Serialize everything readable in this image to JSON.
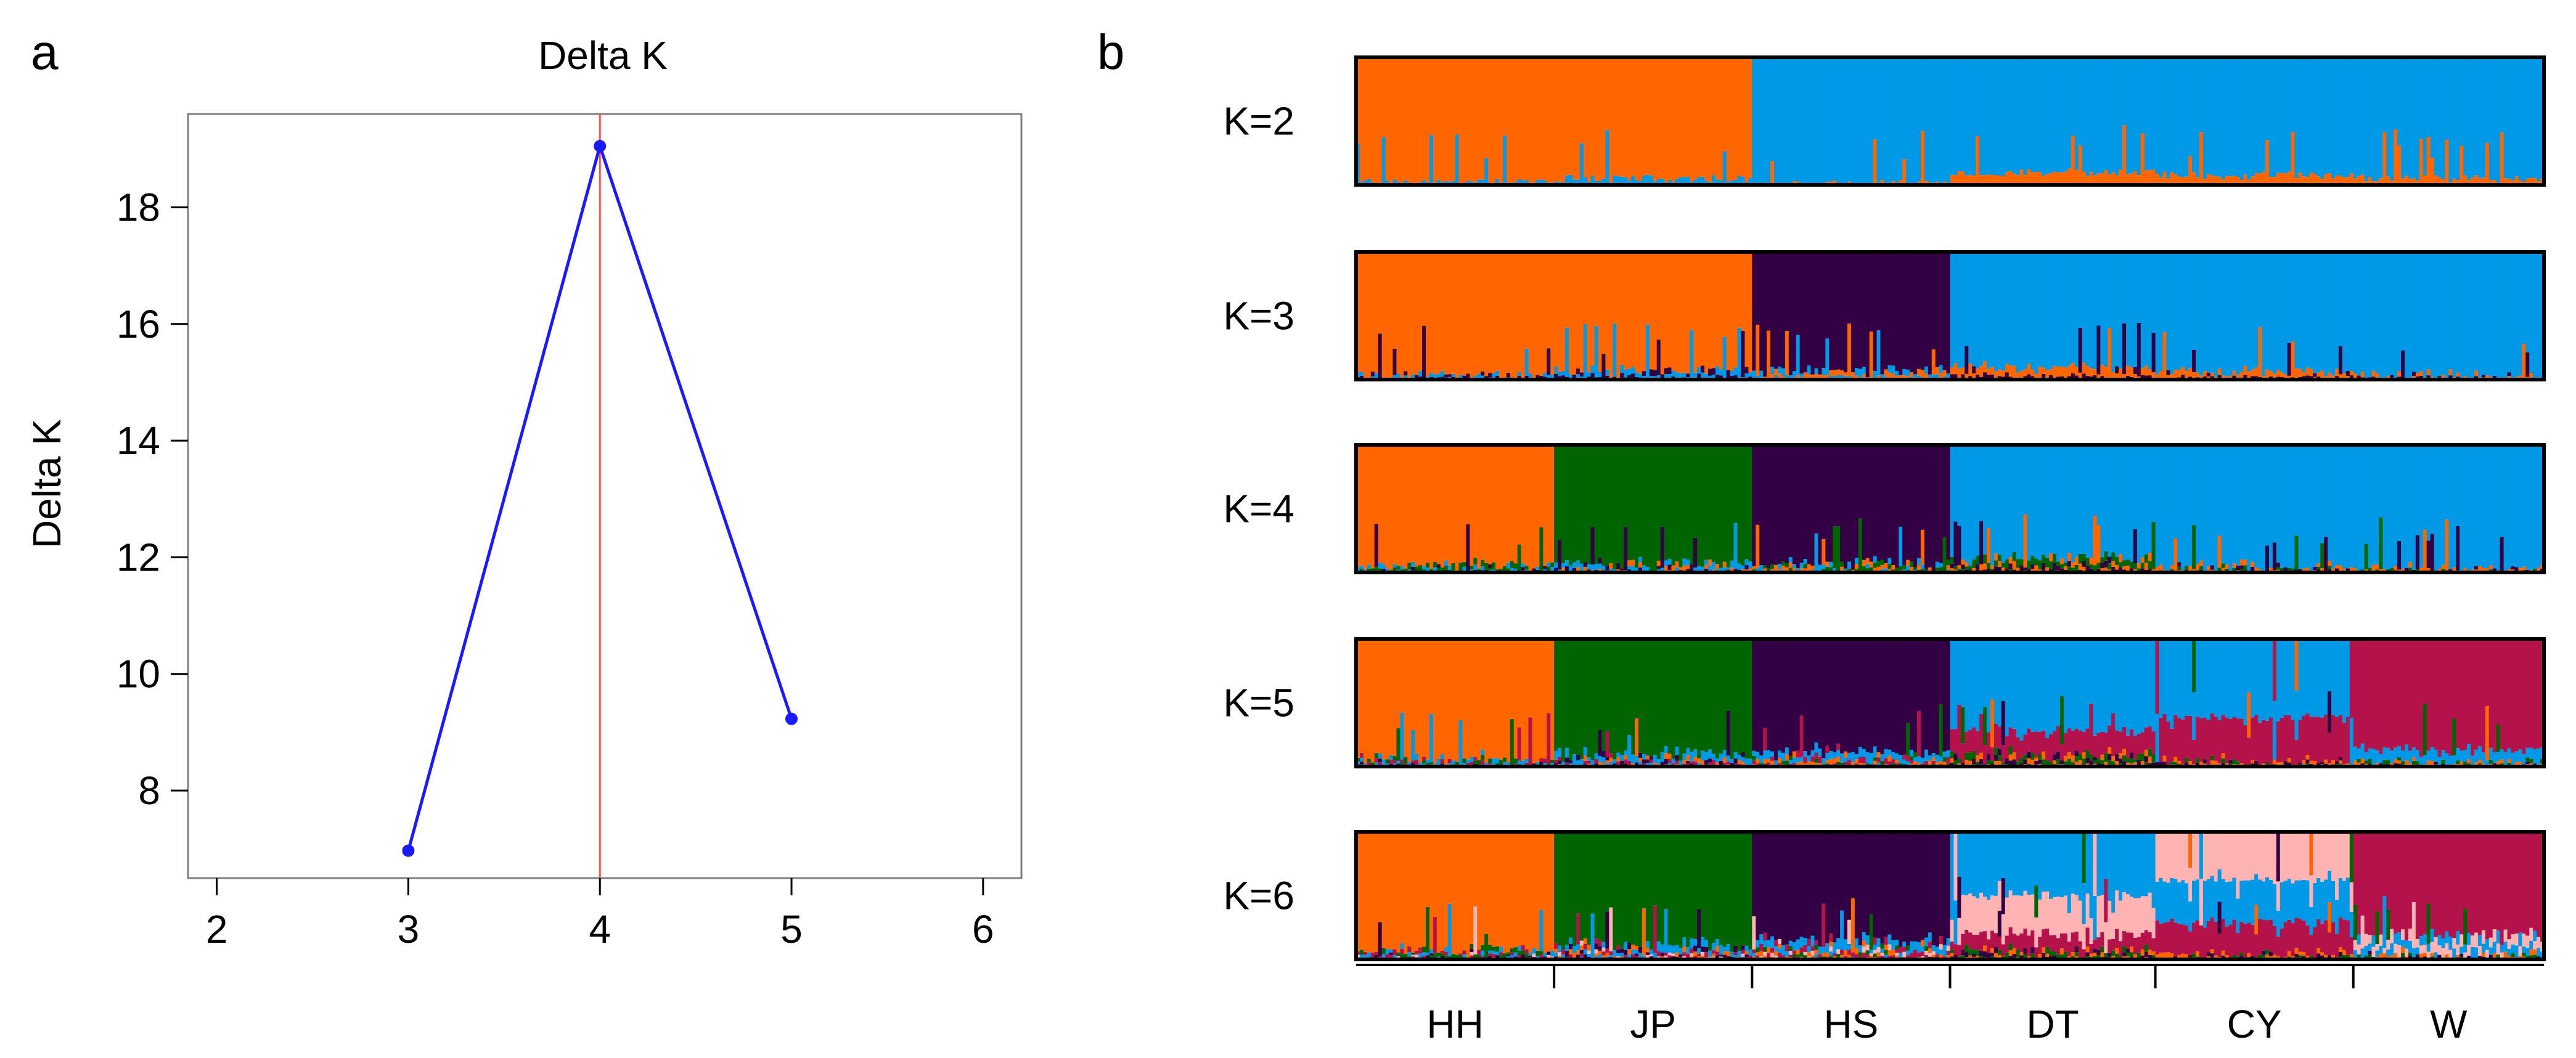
{
  "panels": {
    "a_label": "a",
    "b_label": "b"
  },
  "chart_data": [
    {
      "type": "line",
      "panel": "a",
      "title": "Delta K",
      "xlabel": "",
      "ylabel": "Delta K",
      "xlim": [
        1.85,
        6.2
      ],
      "ylim": [
        6.5,
        19.6
      ],
      "xticks": [
        2,
        3,
        4,
        5,
        6
      ],
      "yticks": [
        8,
        10,
        12,
        14,
        16,
        18
      ],
      "series": [
        {
          "name": "Delta K",
          "x": [
            3,
            4,
            5
          ],
          "y": [
            6.97,
            19.05,
            9.23
          ]
        }
      ],
      "vline": {
        "x": 4,
        "color": "#ff4d4d"
      },
      "line_color": "#1a1aff",
      "point_color": "#1a1aff",
      "grid": false
    },
    {
      "type": "bar",
      "subtype": "stacked-admixture",
      "panel": "b",
      "title": "",
      "k_labels": [
        "K=2",
        "K=3",
        "K=4",
        "K=5",
        "K=6"
      ],
      "populations": [
        {
          "name": "HH",
          "count": 54
        },
        {
          "name": "JP",
          "count": 54
        },
        {
          "name": "HS",
          "count": 54
        },
        {
          "name": "DT",
          "count": 56
        },
        {
          "name": "CY",
          "count": 54
        },
        {
          "name": "W",
          "count": 52
        }
      ],
      "cluster_colors": {
        "orange": "#ff6600",
        "blue": "#0099e6",
        "purple": "#330044",
        "green": "#006400",
        "crimson": "#b3124a",
        "pink": "#ffb3b3"
      },
      "ancestry_by_population": [
        {
          "k": 2,
          "clusters": [
            "orange",
            "blue"
          ],
          "pop_means": {
            "HH": [
              0.98,
              0.02
            ],
            "JP": [
              0.95,
              0.05
            ],
            "HS": [
              0.01,
              0.99
            ],
            "DT": [
              0.1,
              0.9
            ],
            "CY": [
              0.08,
              0.92
            ],
            "W": [
              0.05,
              0.95
            ]
          }
        },
        {
          "k": 3,
          "clusters": [
            "orange",
            "purple",
            "blue"
          ],
          "pop_means": {
            "HH": [
              0.97,
              0.01,
              0.02
            ],
            "JP": [
              0.93,
              0.03,
              0.04
            ],
            "HS": [
              0.03,
              0.93,
              0.04
            ],
            "DT": [
              0.07,
              0.03,
              0.9
            ],
            "CY": [
              0.05,
              0.01,
              0.94
            ],
            "W": [
              0.02,
              0.01,
              0.97
            ]
          }
        },
        {
          "k": 4,
          "clusters": [
            "orange",
            "green",
            "purple",
            "blue"
          ],
          "pop_means": {
            "HH": [
              0.95,
              0.03,
              0.0,
              0.02
            ],
            "JP": [
              0.02,
              0.93,
              0.02,
              0.03
            ],
            "HS": [
              0.02,
              0.02,
              0.93,
              0.03
            ],
            "DT": [
              0.04,
              0.05,
              0.03,
              0.88
            ],
            "CY": [
              0.02,
              0.01,
              0.01,
              0.96
            ],
            "W": [
              0.02,
              0.0,
              0.0,
              0.98
            ]
          }
        },
        {
          "k": 5,
          "clusters": [
            "orange",
            "green",
            "purple",
            "blue",
            "crimson"
          ],
          "pop_means": {
            "HH": [
              0.95,
              0.02,
              0.0,
              0.02,
              0.01
            ],
            "JP": [
              0.02,
              0.9,
              0.02,
              0.05,
              0.01
            ],
            "HS": [
              0.02,
              0.01,
              0.88,
              0.06,
              0.03
            ],
            "DT": [
              0.03,
              0.04,
              0.03,
              0.72,
              0.18
            ],
            "CY": [
              0.02,
              0.01,
              0.01,
              0.62,
              0.34
            ],
            "W": [
              0.02,
              0.01,
              0.0,
              0.1,
              0.87
            ]
          }
        },
        {
          "k": 6,
          "clusters": [
            "orange",
            "green",
            "purple",
            "blue",
            "crimson",
            "pink"
          ],
          "pop_means": {
            "HH": [
              0.94,
              0.02,
              0.0,
              0.02,
              0.02,
              0.0
            ],
            "JP": [
              0.02,
              0.88,
              0.02,
              0.05,
              0.02,
              0.01
            ],
            "HS": [
              0.02,
              0.01,
              0.85,
              0.06,
              0.04,
              0.02
            ],
            "DT": [
              0.02,
              0.03,
              0.02,
              0.5,
              0.13,
              0.3
            ],
            "CY": [
              0.02,
              0.01,
              0.01,
              0.33,
              0.25,
              0.38
            ],
            "W": [
              0.02,
              0.01,
              0.0,
              0.08,
              0.8,
              0.09
            ]
          }
        }
      ]
    }
  ]
}
